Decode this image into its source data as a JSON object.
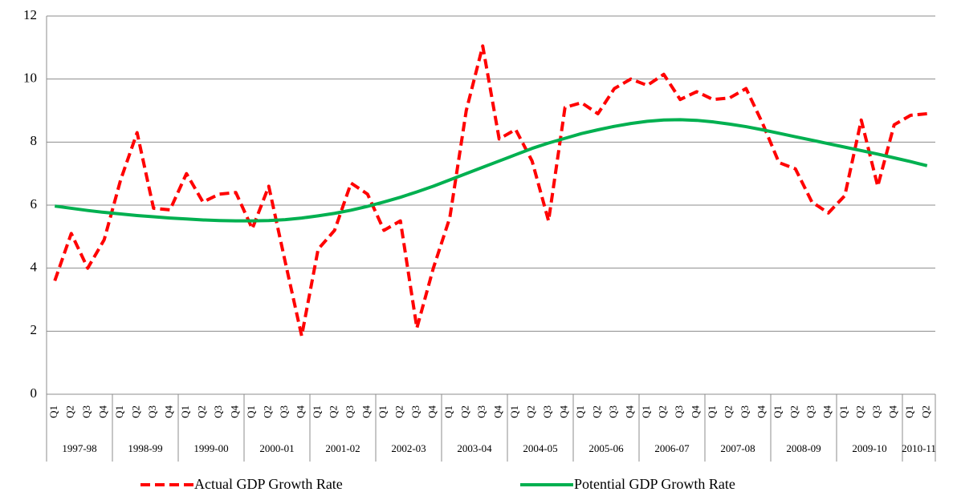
{
  "chart_data": {
    "type": "line",
    "categories": [
      "Q1",
      "Q2",
      "Q3",
      "Q4",
      "Q1",
      "Q2",
      "Q3",
      "Q4",
      "Q1",
      "Q2",
      "Q3",
      "Q4",
      "Q1",
      "Q2",
      "Q3",
      "Q4",
      "Q1",
      "Q2",
      "Q3",
      "Q4",
      "Q1",
      "Q2",
      "Q3",
      "Q4",
      "Q1",
      "Q2",
      "Q3",
      "Q4",
      "Q1",
      "Q2",
      "Q3",
      "Q4",
      "Q1",
      "Q2",
      "Q3",
      "Q4",
      "Q1",
      "Q2",
      "Q3",
      "Q4",
      "Q1",
      "Q2",
      "Q3",
      "Q4",
      "Q1",
      "Q2",
      "Q3",
      "Q4",
      "Q1",
      "Q2",
      "Q3",
      "Q4",
      "Q1",
      "Q2"
    ],
    "groups": [
      "1997-98",
      "1998-99",
      "1999-00",
      "2000-01",
      "2001-02",
      "2002-03",
      "2003-04",
      "2004-05",
      "2005-06",
      "2006-07",
      "2007-08",
      "2008-09",
      "2009-10",
      "2010-11"
    ],
    "series": [
      {
        "name": "Actual GDP Growth Rate",
        "color": "#ff0000",
        "line_style": "dashed",
        "values": [
          3.6,
          5.1,
          4.0,
          4.9,
          6.8,
          8.3,
          5.9,
          5.85,
          7.0,
          6.1,
          6.35,
          6.4,
          5.25,
          6.6,
          4.2,
          1.85,
          4.6,
          5.2,
          6.7,
          6.35,
          5.2,
          5.5,
          2.1,
          4.0,
          5.6,
          9.0,
          11.05,
          8.1,
          8.4,
          7.4,
          5.5,
          9.1,
          9.25,
          8.9,
          9.7,
          10.0,
          9.8,
          10.15,
          9.35,
          9.6,
          9.35,
          9.4,
          9.7,
          8.6,
          7.35,
          7.15,
          6.1,
          5.75,
          6.3,
          8.7,
          6.6,
          8.55,
          8.85,
          8.9
        ]
      },
      {
        "name": "Potential GDP Growth Rate",
        "color": "#00b050",
        "line_style": "solid",
        "values": [
          5.97,
          5.9,
          5.83,
          5.77,
          5.72,
          5.67,
          5.63,
          5.59,
          5.56,
          5.53,
          5.51,
          5.5,
          5.5,
          5.51,
          5.54,
          5.59,
          5.66,
          5.74,
          5.84,
          5.96,
          6.1,
          6.25,
          6.42,
          6.6,
          6.8,
          7.0,
          7.2,
          7.4,
          7.6,
          7.8,
          7.97,
          8.12,
          8.27,
          8.39,
          8.5,
          8.59,
          8.66,
          8.7,
          8.71,
          8.69,
          8.64,
          8.57,
          8.49,
          8.39,
          8.28,
          8.17,
          8.06,
          7.95,
          7.84,
          7.73,
          7.62,
          7.5,
          7.38,
          7.25
        ]
      }
    ],
    "ylim": [
      0,
      12
    ],
    "yticks": [
      0,
      2,
      4,
      6,
      8,
      10,
      12
    ],
    "grid": true
  }
}
